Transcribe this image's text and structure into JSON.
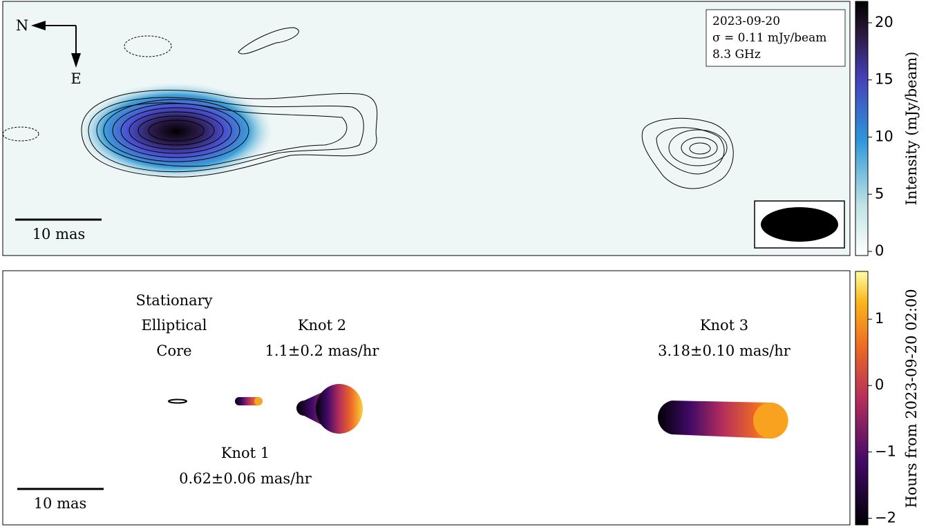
{
  "top_panel": {
    "date_label": "2023-09-20",
    "sigma_label": "σ = 0.11 mJy/beam",
    "freq_label": "8.3 GHz",
    "compass": {
      "north": "N",
      "east": "E"
    },
    "scale_bar": "10 mas",
    "colorbar": {
      "label": "Intensity (mJy/beam)",
      "lim": [
        -0.36,
        21.87
      ],
      "ticks": [
        0,
        5,
        10,
        15,
        20
      ]
    }
  },
  "bottom_panel": {
    "core_label": [
      "Stationary",
      "Elliptical",
      "Core"
    ],
    "knot1": {
      "name": "Knot 1",
      "speed": "0.62±0.06 mas/hr"
    },
    "knot2": {
      "name": "Knot 2",
      "speed": "1.1±0.2 mas/hr"
    },
    "knot3": {
      "name": "Knot 3",
      "speed": "3.18±0.10 mas/hr"
    },
    "scale_bar": "10 mas",
    "colorbar": {
      "label": "Hours from 2023-09-20 02:00",
      "lim": [
        -2.1,
        1.72
      ],
      "ticks": [
        {
          "value": -2,
          "label": "−2"
        },
        {
          "value": -1,
          "label": "−1"
        },
        0,
        1
      ]
    }
  }
}
